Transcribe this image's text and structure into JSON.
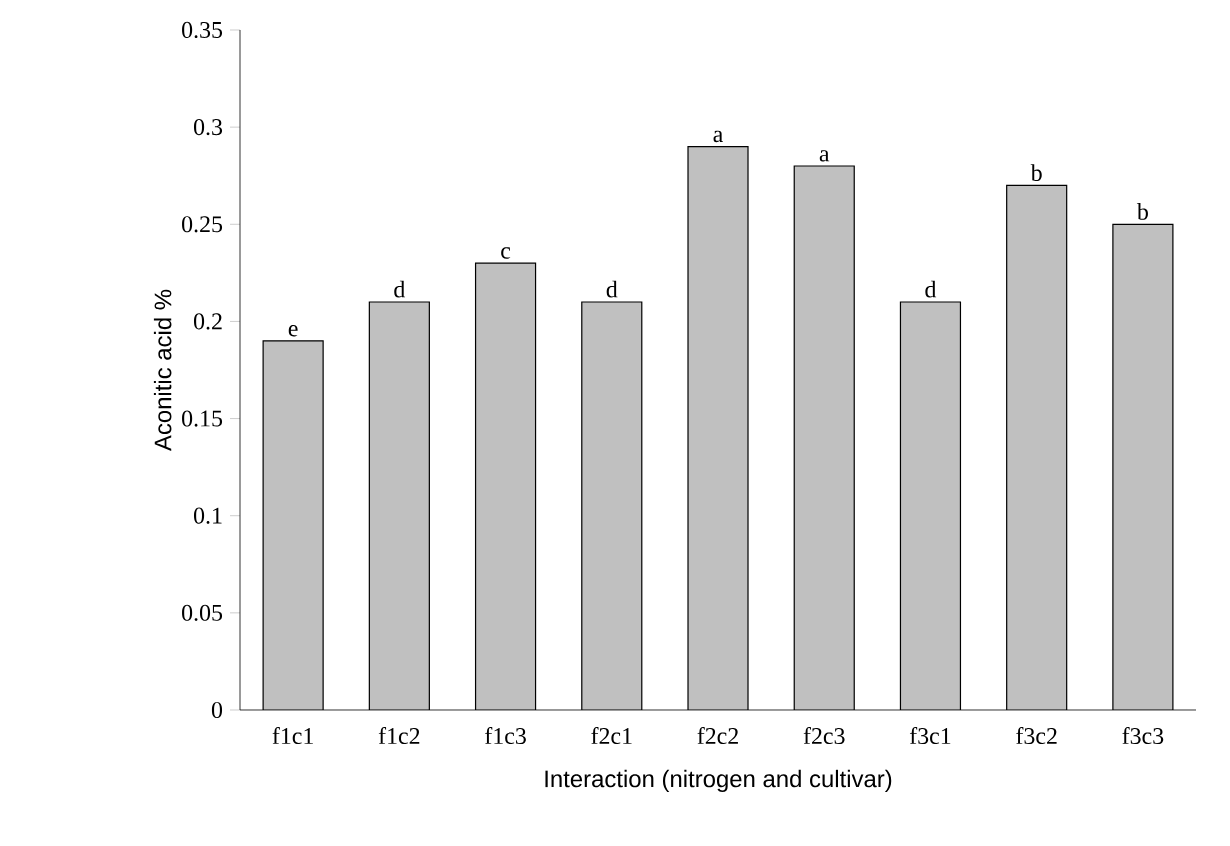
{
  "chart_data": {
    "type": "bar",
    "xlabel": "Interaction (nitrogen and cultivar)",
    "ylabel": "Aconitic acid %",
    "categories": [
      "f1c1",
      "f1c2",
      "f1c3",
      "f2c1",
      "f2c2",
      "f2c3",
      "f3c1",
      "f3c2",
      "f3c3"
    ],
    "values": [
      0.19,
      0.21,
      0.23,
      0.21,
      0.29,
      0.28,
      0.21,
      0.27,
      0.25
    ],
    "color": "#c0c0c0",
    "ylim": [
      0,
      0.35
    ],
    "yticks": [
      0,
      0.05,
      0.1,
      0.15,
      0.2,
      0.25,
      0.3,
      0.35
    ],
    "annotations": [
      {
        "text": "e",
        "x": "f1c1",
        "y": 0.19
      },
      {
        "text": "d",
        "x": "f1c2",
        "y": 0.21
      },
      {
        "text": "c",
        "x": "f1c3",
        "y": 0.23
      },
      {
        "text": "d",
        "x": "f2c1",
        "y": 0.21
      },
      {
        "text": "a",
        "x": "f2c2",
        "y": 0.29
      },
      {
        "text": "a",
        "x": "f2c3",
        "y": 0.28
      },
      {
        "text": "d",
        "x": "f3c1",
        "y": 0.21
      },
      {
        "text": "b",
        "x": "f3c2",
        "y": 0.27
      },
      {
        "text": "b",
        "x": "f3c3",
        "y": 0.25
      }
    ]
  }
}
